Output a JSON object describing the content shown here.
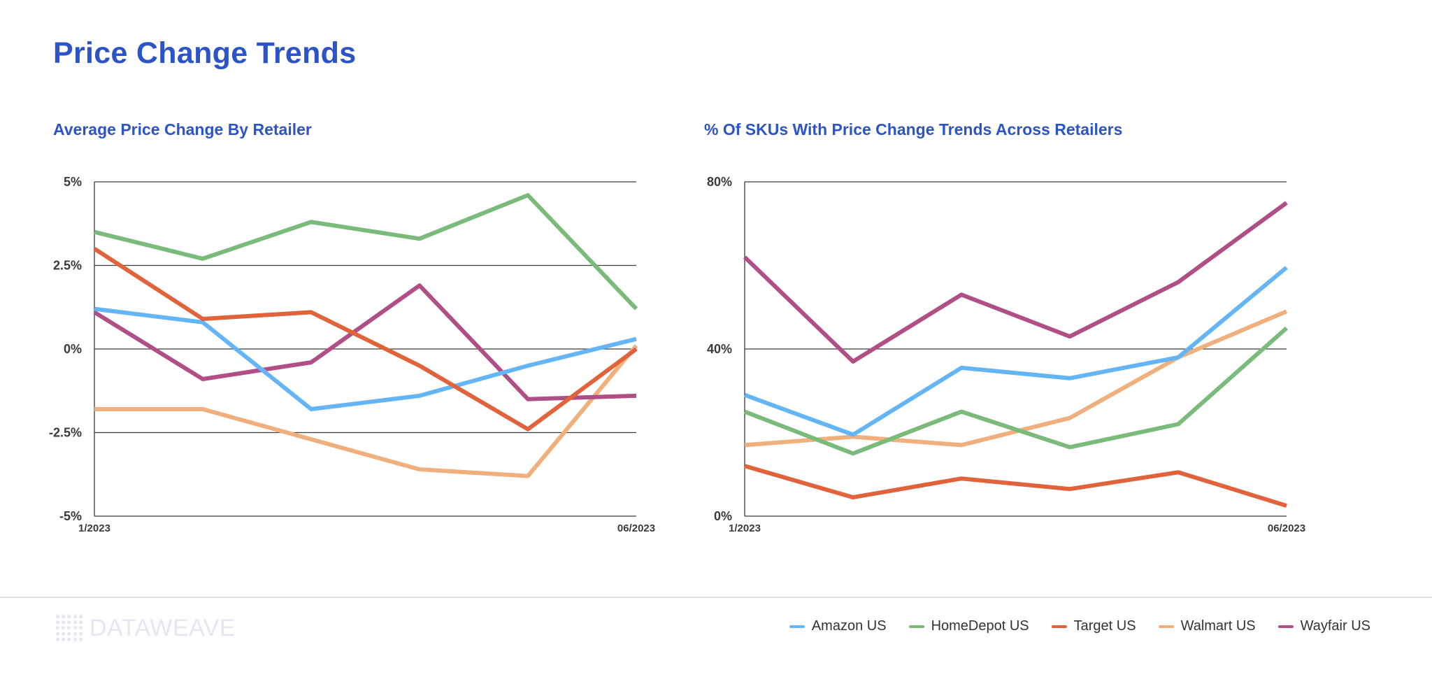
{
  "page": {
    "title": "Price Change Trends"
  },
  "brand": {
    "name": "DATAWEAVE"
  },
  "legend": [
    {
      "label": "Amazon US",
      "color": "#64b5f6"
    },
    {
      "label": "HomeDepot US",
      "color": "#7aba7a"
    },
    {
      "label": "Target US",
      "color": "#e0633c"
    },
    {
      "label": "Walmart US",
      "color": "#f0b07e"
    },
    {
      "label": "Wayfair US",
      "color": "#b04f86"
    }
  ],
  "chart_data": [
    {
      "type": "line",
      "title": "Average Price Change By Retailer",
      "xlabel": "",
      "ylabel": "",
      "x_tick_labels": [
        "1/2023",
        "06/2023"
      ],
      "y_ticks": [
        -5,
        -2.5,
        0,
        2.5,
        5
      ],
      "y_tick_labels": [
        "-5%",
        "-2.5%",
        "0%",
        "2.5%",
        "5%"
      ],
      "ylim": [
        -5,
        5
      ],
      "grid": true,
      "point_count": 6,
      "series": [
        {
          "name": "HomeDepot US",
          "color": "#7aba7a",
          "values": [
            3.5,
            2.7,
            3.8,
            3.3,
            4.6,
            1.2
          ]
        },
        {
          "name": "Walmart US",
          "color": "#f0b07e",
          "values": [
            -1.8,
            -1.8,
            -2.7,
            -3.6,
            -3.8,
            0.1
          ]
        },
        {
          "name": "Wayfair US",
          "color": "#b04f86",
          "values": [
            1.1,
            -0.9,
            -0.4,
            1.9,
            -1.5,
            -1.4
          ]
        },
        {
          "name": "Amazon US",
          "color": "#64b5f6",
          "values": [
            1.2,
            0.8,
            -1.8,
            -1.4,
            -0.5,
            0.3
          ]
        },
        {
          "name": "Target US",
          "color": "#e0633c",
          "values": [
            3.0,
            0.9,
            1.1,
            -0.5,
            -2.4,
            0.0
          ]
        }
      ]
    },
    {
      "type": "line",
      "title": "% Of SKUs With Price Change Trends Across Retailers",
      "xlabel": "",
      "ylabel": "",
      "x_tick_labels": [
        "1/2023",
        "06/2023"
      ],
      "y_ticks": [
        0,
        40,
        80
      ],
      "y_tick_labels": [
        "0%",
        "40%",
        "80%"
      ],
      "ylim": [
        0,
        80
      ],
      "grid": true,
      "point_count": 6,
      "series": [
        {
          "name": "Wayfair US",
          "color": "#b04f86",
          "values": [
            62,
            37,
            53,
            43,
            56,
            75
          ]
        },
        {
          "name": "Walmart US",
          "color": "#f0b07e",
          "values": [
            17,
            19,
            17,
            23.5,
            38,
            49
          ]
        },
        {
          "name": "HomeDepot US",
          "color": "#7aba7a",
          "values": [
            25,
            15,
            25,
            16.5,
            22,
            45
          ]
        },
        {
          "name": "Amazon US",
          "color": "#64b5f6",
          "values": [
            29,
            19.5,
            35.5,
            33,
            38,
            59.5
          ]
        },
        {
          "name": "Target US",
          "color": "#e0633c",
          "values": [
            12,
            4.5,
            9,
            6.5,
            10.5,
            2.5
          ]
        }
      ]
    }
  ]
}
